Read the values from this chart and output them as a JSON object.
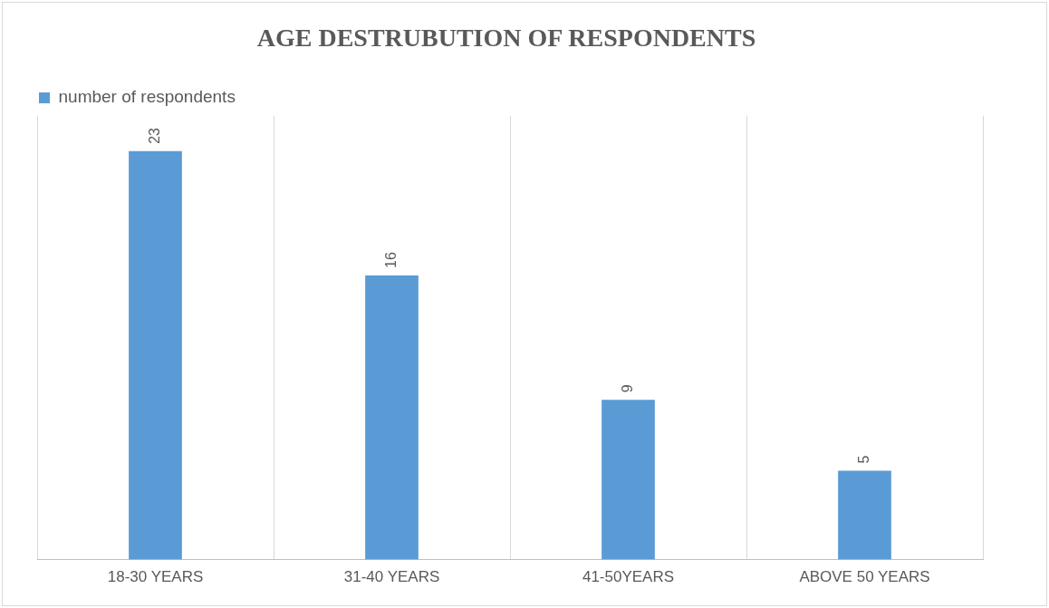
{
  "chart_data": {
    "type": "bar",
    "title": "AGE DESTRUBUTION OF RESPONDENTS",
    "categories": [
      "18-30 YEARS",
      "31-40 YEARS",
      "41-50YEARS",
      "ABOVE 50 YEARS"
    ],
    "series": [
      {
        "name": "number of respondents",
        "color": "#5b9bd5",
        "values": [
          23,
          16,
          9,
          5
        ]
      }
    ],
    "ylim": [
      0,
      25
    ],
    "tick_labels": "x",
    "grid": "x",
    "legend": "top left",
    "data_labels": true
  }
}
